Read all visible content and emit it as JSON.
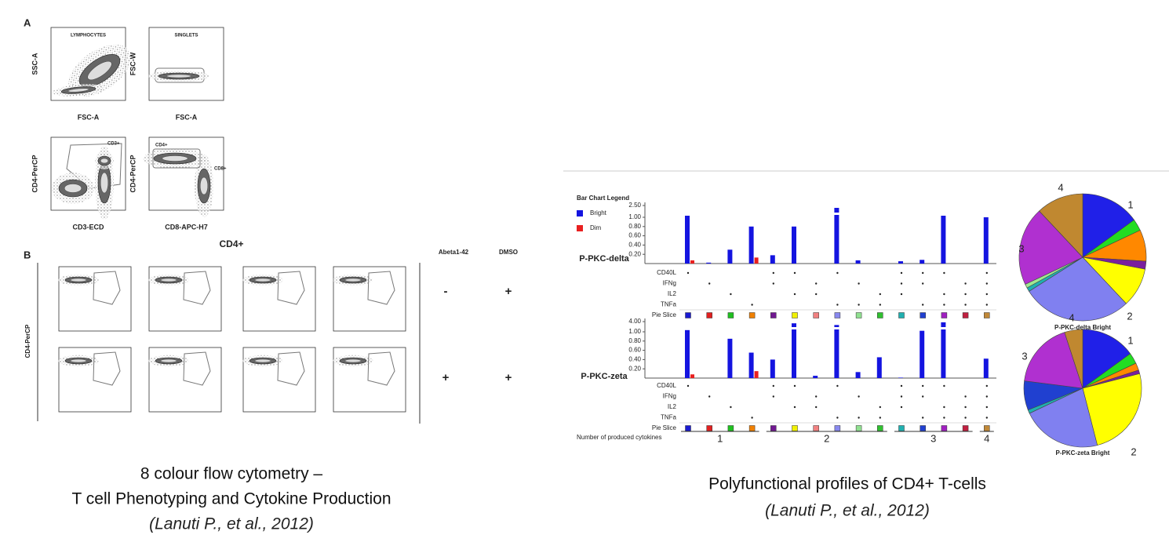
{
  "left": {
    "panel_a": {
      "label": "A",
      "plots": [
        {
          "title": "LYMPHOCYTES",
          "x_label": "FSC-A",
          "y_label": "SSC-A",
          "gates": []
        },
        {
          "title": "SINGLETS",
          "x_label": "FSC-A",
          "y_label": "FSC-W",
          "gates": []
        },
        {
          "x_label": "CD3-ECD",
          "y_label": "CD4-PerCP",
          "gates": [
            "CD3+"
          ]
        },
        {
          "x_label": "CD8-APC-H7",
          "y_label": "CD4-PerCP",
          "gates": [
            "CD4+",
            "CD8+"
          ]
        }
      ]
    },
    "panel_b": {
      "label": "B",
      "title": "CD4+",
      "y_label": "CD4-PerCP",
      "columns": [
        "Abeta1-42",
        "DMSO"
      ],
      "rows": [
        [
          "-",
          "+"
        ],
        [
          "+",
          "+"
        ]
      ]
    },
    "caption": {
      "line1": "8 colour flow cytometry –",
      "line2": "T cell Phenotyping and Cytokine Production",
      "citation": "(Lanuti P., et al., 2012)"
    }
  },
  "right": {
    "legend_title": "Bar Chart Legend",
    "series": [
      {
        "name": "Bright",
        "color": "#1414e0"
      },
      {
        "name": "Dim",
        "color": "#e82020"
      }
    ],
    "charts": [
      {
        "label": "P-PKC-delta",
        "yticks": [
          {
            "value": 0.2,
            "label": "0.20"
          },
          {
            "value": 0.4,
            "label": "0.40"
          },
          {
            "value": 0.6,
            "label": "0.60"
          },
          {
            "value": 0.8,
            "label": "0.80"
          },
          {
            "value": 1.0,
            "label": "1.00"
          },
          {
            "value": 2.5,
            "label": "2.50"
          }
        ],
        "bright": [
          1.2,
          0.02,
          0.3,
          0.8,
          0.18,
          0.8,
          0,
          2.2,
          0.07,
          0,
          0.05,
          0.08,
          1.2,
          0,
          1.0
        ],
        "dim": [
          0.07,
          0,
          0,
          0.13,
          0,
          0,
          0,
          0,
          0,
          0,
          0,
          0,
          0,
          0,
          0
        ]
      },
      {
        "label": "P-PKC-zeta",
        "yticks": [
          {
            "value": 0.2,
            "label": "0.20"
          },
          {
            "value": 0.4,
            "label": "0.40"
          },
          {
            "value": 0.6,
            "label": "0.60"
          },
          {
            "value": 0.8,
            "label": "0.80"
          },
          {
            "value": 1.0,
            "label": "1.00"
          },
          {
            "value": 4.0,
            "label": "4.00"
          }
        ],
        "bright": [
          1.5,
          0,
          0.85,
          0.55,
          0.4,
          3.5,
          0.05,
          3.0,
          0.13,
          0.45,
          0.01,
          1.3,
          3.8,
          0,
          0.42
        ],
        "dim": [
          0.08,
          0,
          0,
          0.15,
          0,
          0,
          0,
          0,
          0,
          0,
          0,
          0,
          0,
          0,
          0
        ]
      }
    ],
    "rows": [
      "CD40L",
      "IFNg",
      "IL2",
      "TNFa"
    ],
    "pie_slice_label": "Pie Slice",
    "matrix": [
      [
        true,
        false,
        false,
        false,
        true,
        true,
        false,
        true,
        false,
        false,
        true,
        true,
        true,
        false,
        true
      ],
      [
        false,
        true,
        false,
        false,
        true,
        false,
        true,
        false,
        true,
        false,
        true,
        true,
        false,
        true,
        true
      ],
      [
        false,
        false,
        true,
        false,
        false,
        true,
        true,
        false,
        false,
        true,
        true,
        false,
        true,
        true,
        true
      ],
      [
        false,
        false,
        false,
        true,
        false,
        false,
        false,
        true,
        true,
        true,
        false,
        true,
        true,
        true,
        true
      ]
    ],
    "slice_colors": [
      "#1a1ad0",
      "#e02020",
      "#20c020",
      "#f08000",
      "#701890",
      "#f0f000",
      "#f08080",
      "#8888ee",
      "#90e090",
      "#30c030",
      "#20b0b0",
      "#2040d0",
      "#a020c0",
      "#c02040",
      "#c08838"
    ],
    "count_label": "Number of produced cytokines",
    "groups": [
      "1",
      "2",
      "3",
      "4"
    ],
    "pies": [
      {
        "title": "P-PKC-delta Bright",
        "values": [
          15,
          3,
          8,
          2,
          10,
          28,
          1,
          1,
          20,
          12
        ],
        "colors": [
          "#2020e8",
          "#22dd22",
          "#ff8800",
          "#7a1f9e",
          "#ffff00",
          "#8080f0",
          "#20b0b0",
          "#a0e890",
          "#b030d0",
          "#c08830"
        ]
      },
      {
        "title": "P-PKC-zeta Bright",
        "values": [
          15,
          3,
          2,
          1,
          25,
          22,
          1,
          8,
          18,
          5
        ],
        "colors": [
          "#2020e8",
          "#22dd22",
          "#ff8800",
          "#7a1f9e",
          "#ffff00",
          "#8080f0",
          "#20b0b0",
          "#2040d0",
          "#b030d0",
          "#c08830"
        ]
      }
    ],
    "caption": {
      "title": "Polyfunctional profiles of CD4+ T-cells",
      "citation": "(Lanuti P., et al., 2012)"
    }
  }
}
